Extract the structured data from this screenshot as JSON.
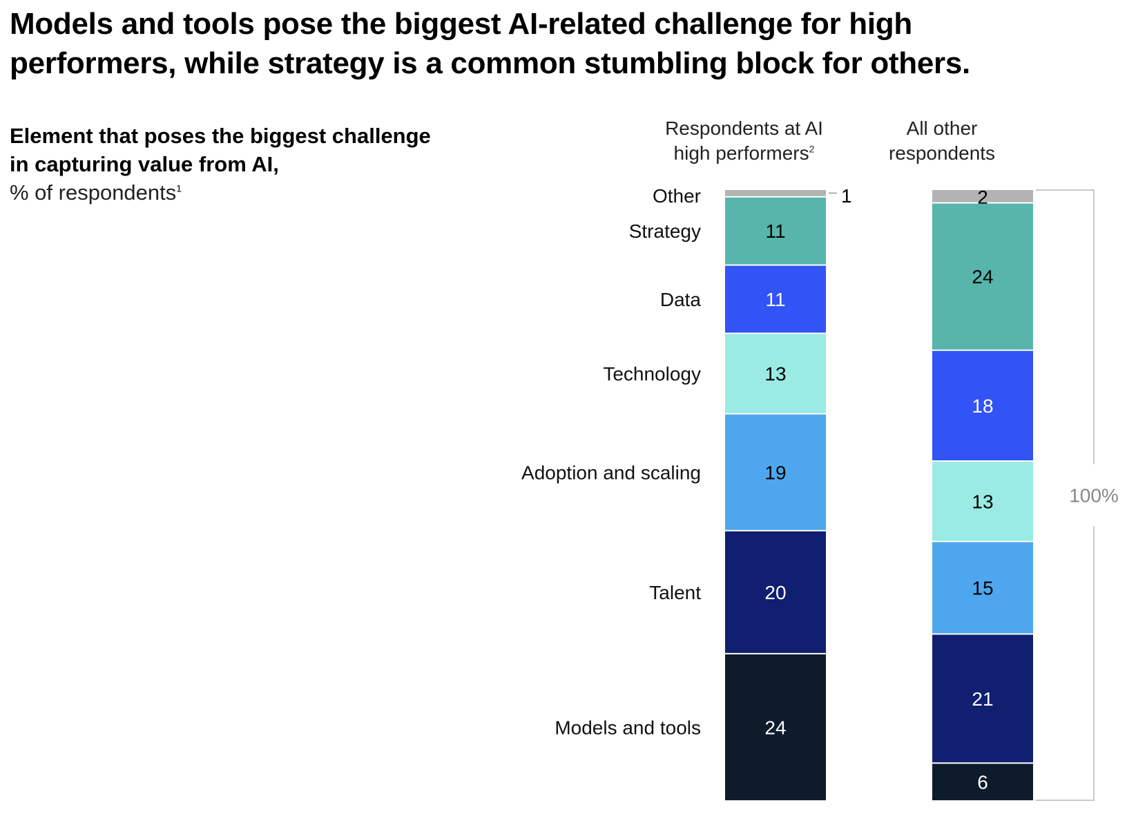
{
  "header": {
    "title": "Models and tools pose the biggest AI-related challenge for high performers, while strategy is a common stumbling block for others."
  },
  "subtitle": {
    "bold_line": "Element that poses the biggest challenge in capturing value from AI,",
    "unit": "% of respondents",
    "unit_footnote": "1"
  },
  "columns": {
    "high_performers": {
      "label": "Respondents at AI high performers",
      "footnote": "2"
    },
    "others": {
      "label": "All other respondents"
    }
  },
  "total_label": "100%",
  "colors": {
    "Other": "#b3b3b3",
    "Strategy": "#57b5ab",
    "Data": "#3253f5",
    "Technology": "#99ebe3",
    "Adoption and scaling": "#4ea7ee",
    "Talent": "#101f70",
    "Models and tools": "#0e1b2b"
  },
  "chart_data": {
    "type": "bar",
    "stacked": true,
    "categories": [
      "Other",
      "Strategy",
      "Data",
      "Technology",
      "Adoption and scaling",
      "Talent",
      "Models and tools"
    ],
    "series": [
      {
        "name": "Respondents at AI high performers",
        "values": [
          1,
          11,
          11,
          13,
          19,
          20,
          24
        ]
      },
      {
        "name": "All other respondents",
        "values": [
          2,
          24,
          18,
          13,
          15,
          21,
          6
        ]
      }
    ],
    "value_labels": {
      "Respondents at AI high performers": [
        "1",
        "11",
        "11",
        "13",
        "19",
        "20",
        "24"
      ],
      "All other respondents": [
        "2",
        "24",
        "18",
        "13",
        "15",
        "21",
        "6"
      ]
    },
    "ylim": [
      0,
      100
    ],
    "grid": false,
    "legend": "category labels left of first bar"
  }
}
